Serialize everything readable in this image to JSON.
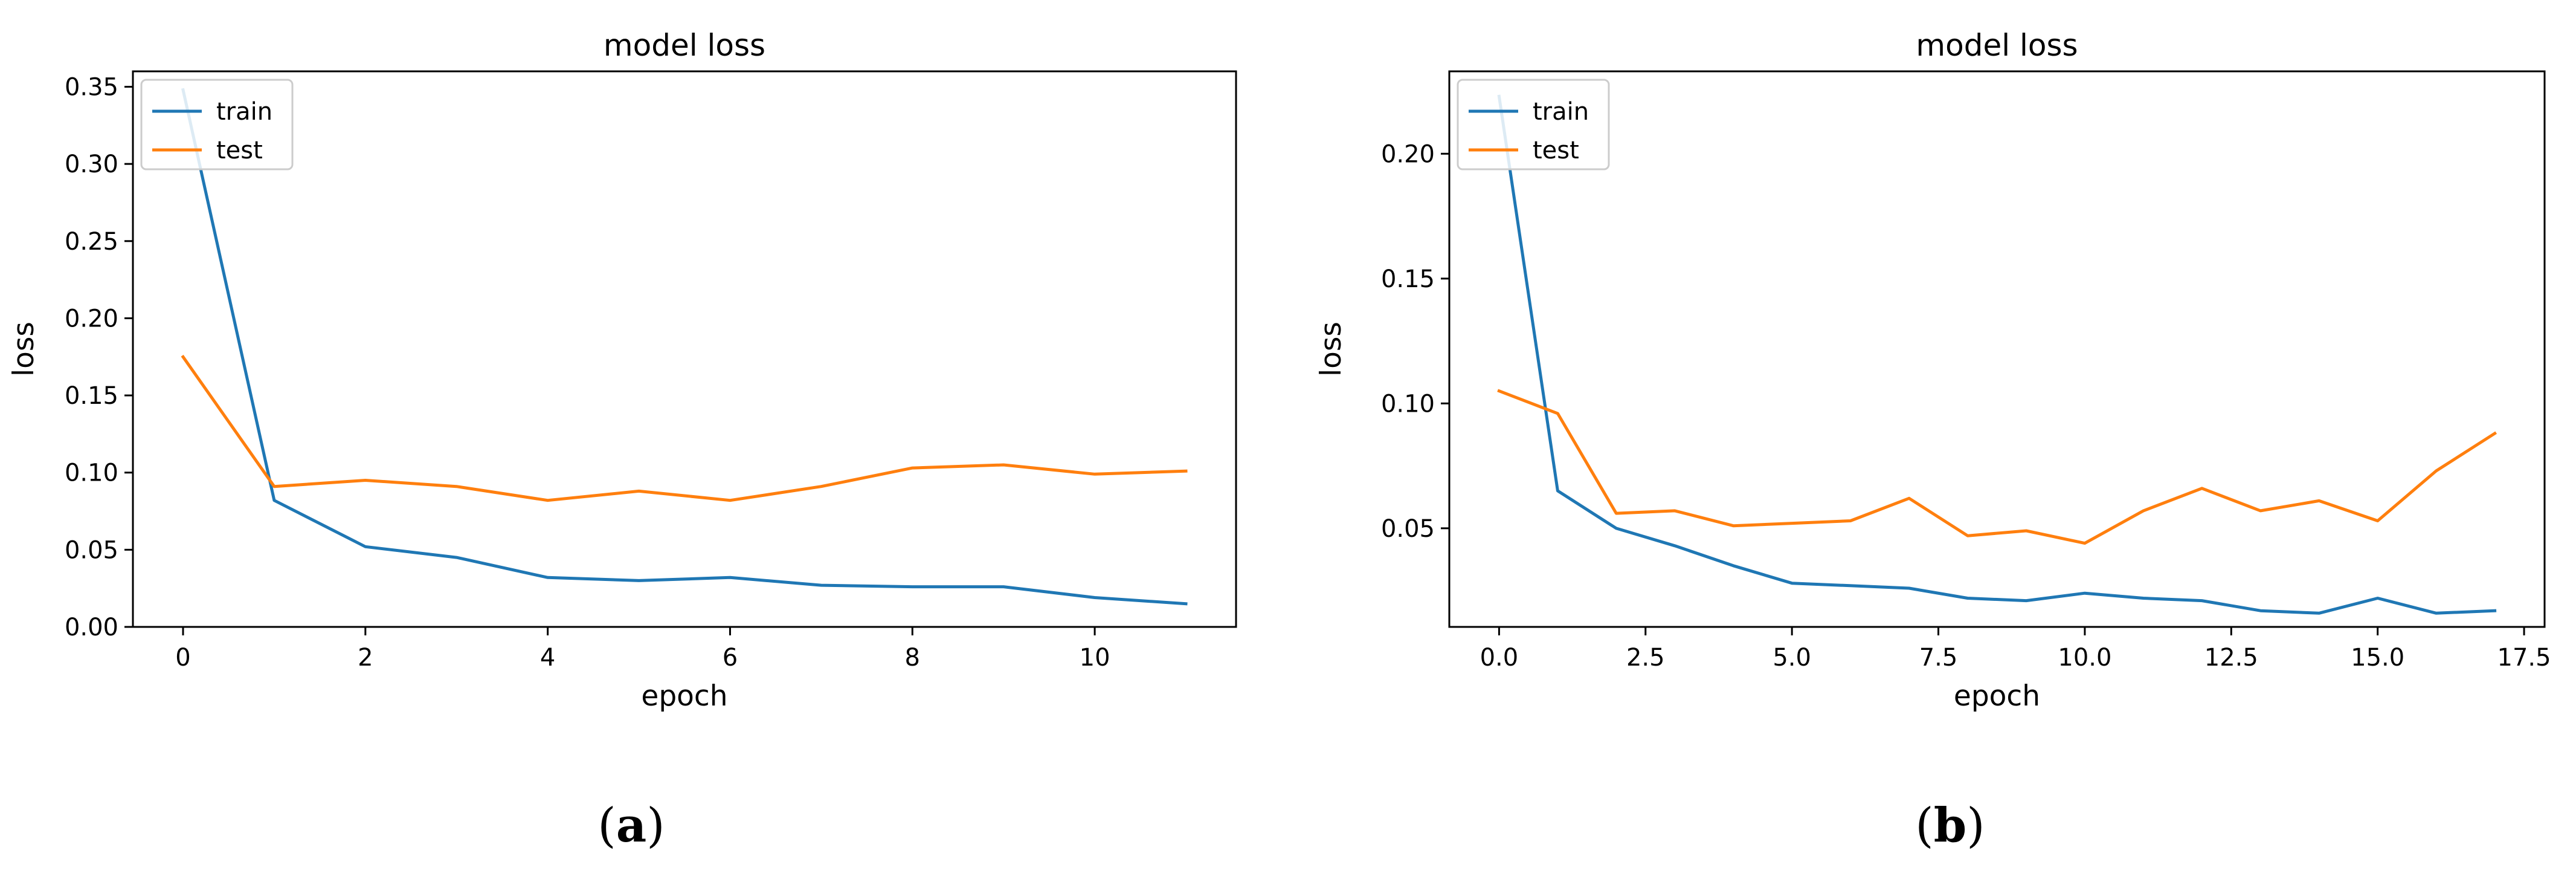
{
  "colors": {
    "train": "#1f77b4",
    "test": "#ff7f0e",
    "axis": "#000000",
    "text": "#000000",
    "legend_border": "#cccccc"
  },
  "captions": [
    {
      "open": "(",
      "letter": "a",
      "close": ")"
    },
    {
      "open": "(",
      "letter": "b",
      "close": ")"
    }
  ],
  "chart_data": [
    {
      "type": "line",
      "title": "model loss",
      "xlabel": "epoch",
      "ylabel": "loss",
      "xlim": [
        -0.55,
        11.55
      ],
      "ylim": [
        0.0,
        0.36
      ],
      "xticks": [
        0,
        2,
        4,
        6,
        8,
        10
      ],
      "xtick_labels": [
        "0",
        "2",
        "4",
        "6",
        "8",
        "10"
      ],
      "yticks": [
        0.0,
        0.05,
        0.1,
        0.15,
        0.2,
        0.25,
        0.3,
        0.35
      ],
      "ytick_labels": [
        "0.00",
        "0.05",
        "0.10",
        "0.15",
        "0.20",
        "0.25",
        "0.30",
        "0.35"
      ],
      "grid": false,
      "legend": "upper-left",
      "x": [
        0,
        1,
        2,
        3,
        4,
        5,
        6,
        7,
        8,
        9,
        10,
        11
      ],
      "series": [
        {
          "name": "train",
          "values": [
            0.348,
            0.082,
            0.052,
            0.045,
            0.032,
            0.03,
            0.032,
            0.027,
            0.026,
            0.026,
            0.019,
            0.015
          ]
        },
        {
          "name": "test",
          "values": [
            0.175,
            0.091,
            0.095,
            0.091,
            0.082,
            0.088,
            0.082,
            0.091,
            0.103,
            0.105,
            0.099,
            0.101
          ]
        }
      ]
    },
    {
      "type": "line",
      "title": "model loss",
      "xlabel": "epoch",
      "ylabel": "loss",
      "xlim": [
        -0.85,
        17.85
      ],
      "ylim": [
        0.0105,
        0.233
      ],
      "xticks": [
        0.0,
        2.5,
        5.0,
        7.5,
        10.0,
        12.5,
        15.0,
        17.5
      ],
      "xtick_labels": [
        "0.0",
        "2.5",
        "5.0",
        "7.5",
        "10.0",
        "12.5",
        "15.0",
        "17.5"
      ],
      "yticks": [
        0.05,
        0.1,
        0.15,
        0.2
      ],
      "ytick_labels": [
        "0.05",
        "0.10",
        "0.15",
        "0.20"
      ],
      "grid": false,
      "legend": "upper-left",
      "x": [
        0,
        1,
        2,
        3,
        4,
        5,
        6,
        7,
        8,
        9,
        10,
        11,
        12,
        13,
        14,
        15,
        16,
        17
      ],
      "series": [
        {
          "name": "train",
          "values": [
            0.223,
            0.065,
            0.05,
            0.043,
            0.035,
            0.028,
            0.027,
            0.026,
            0.022,
            0.021,
            0.024,
            0.022,
            0.021,
            0.017,
            0.016,
            0.022,
            0.016,
            0.017
          ]
        },
        {
          "name": "test",
          "values": [
            0.105,
            0.096,
            0.056,
            0.057,
            0.051,
            0.052,
            0.053,
            0.062,
            0.047,
            0.049,
            0.044,
            0.057,
            0.066,
            0.057,
            0.061,
            0.053,
            0.073,
            0.088
          ]
        }
      ]
    }
  ]
}
